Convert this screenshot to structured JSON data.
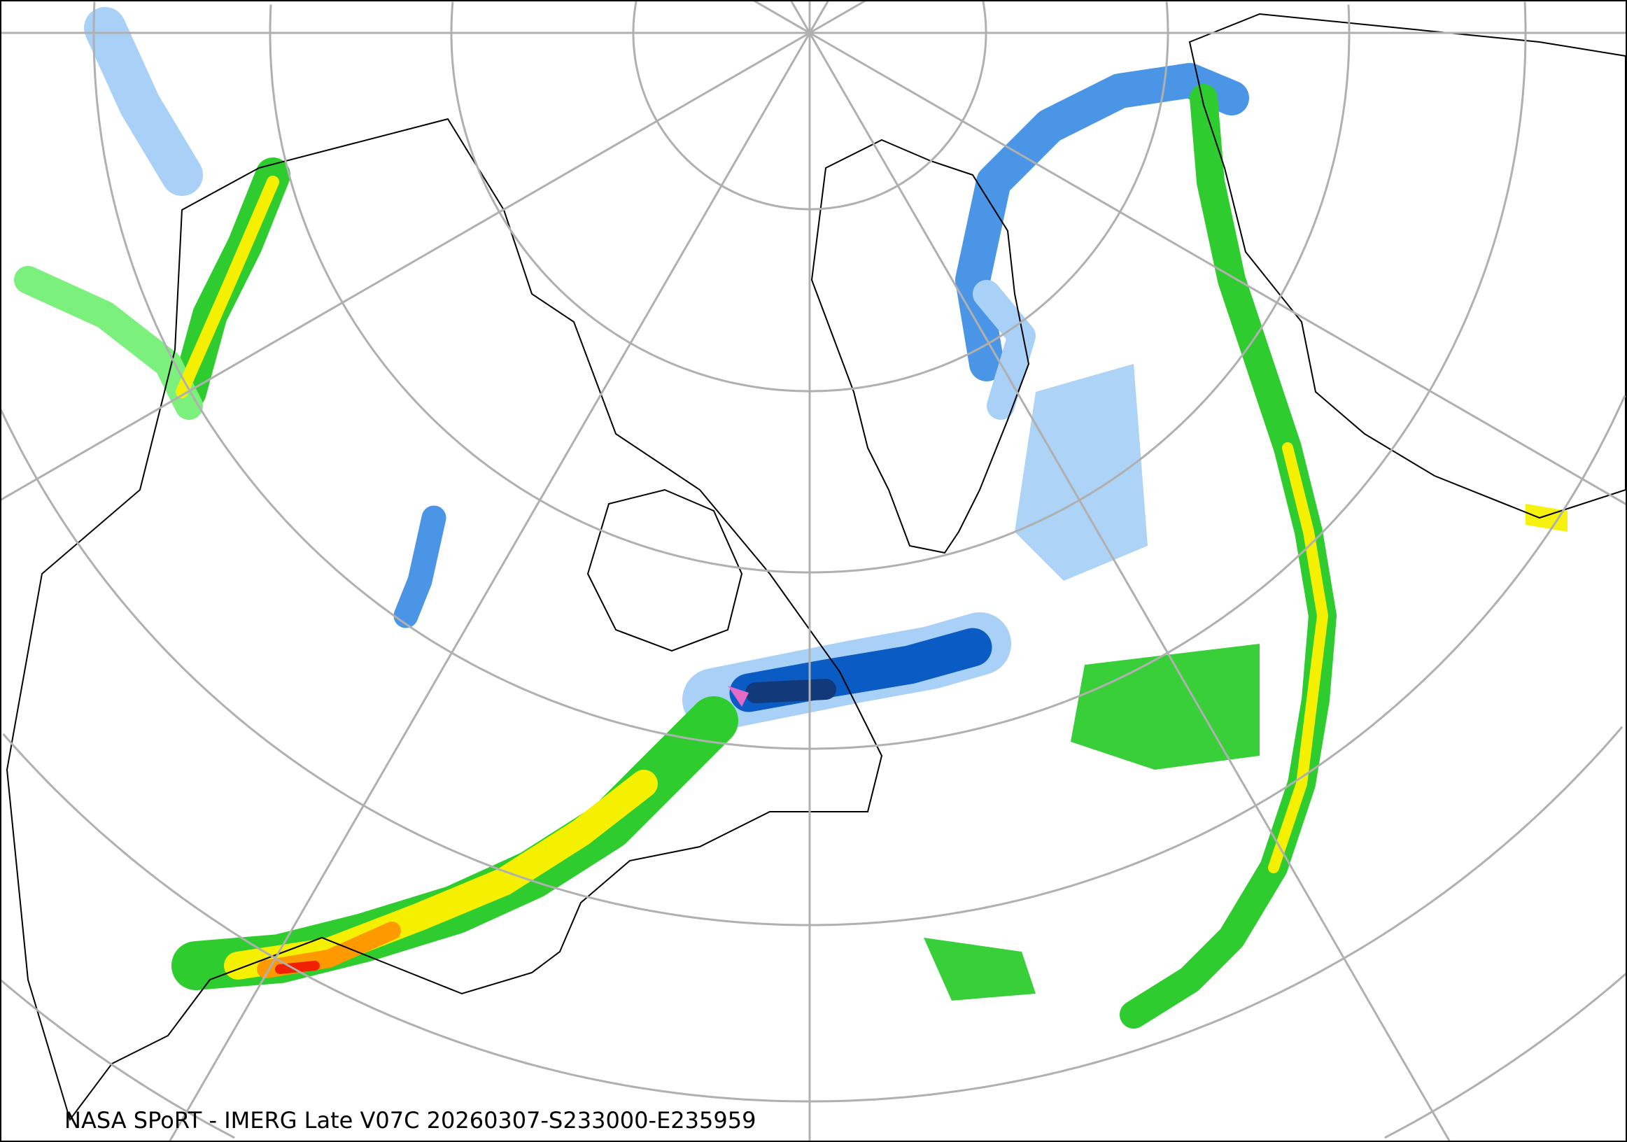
{
  "caption": "NASA SPoRT - IMERG Late V07C 20260307-S233000-E235959",
  "map": {
    "projection": "polar-stereographic",
    "graticule_color": "#b0b0b0",
    "coastline_color": "#000000",
    "precip_colors": {
      "light_blue": "#a9d1f7",
      "mid_blue": "#4a95e6",
      "dark_blue": "#0a5bc4",
      "navy": "#123a7a",
      "pink": "#f06cc8",
      "dark_green": "#0a7a1e",
      "green": "#2ecc2e",
      "light_green": "#7cf07c",
      "yellow": "#f5f000",
      "orange": "#ff9900",
      "red": "#f02000"
    }
  }
}
